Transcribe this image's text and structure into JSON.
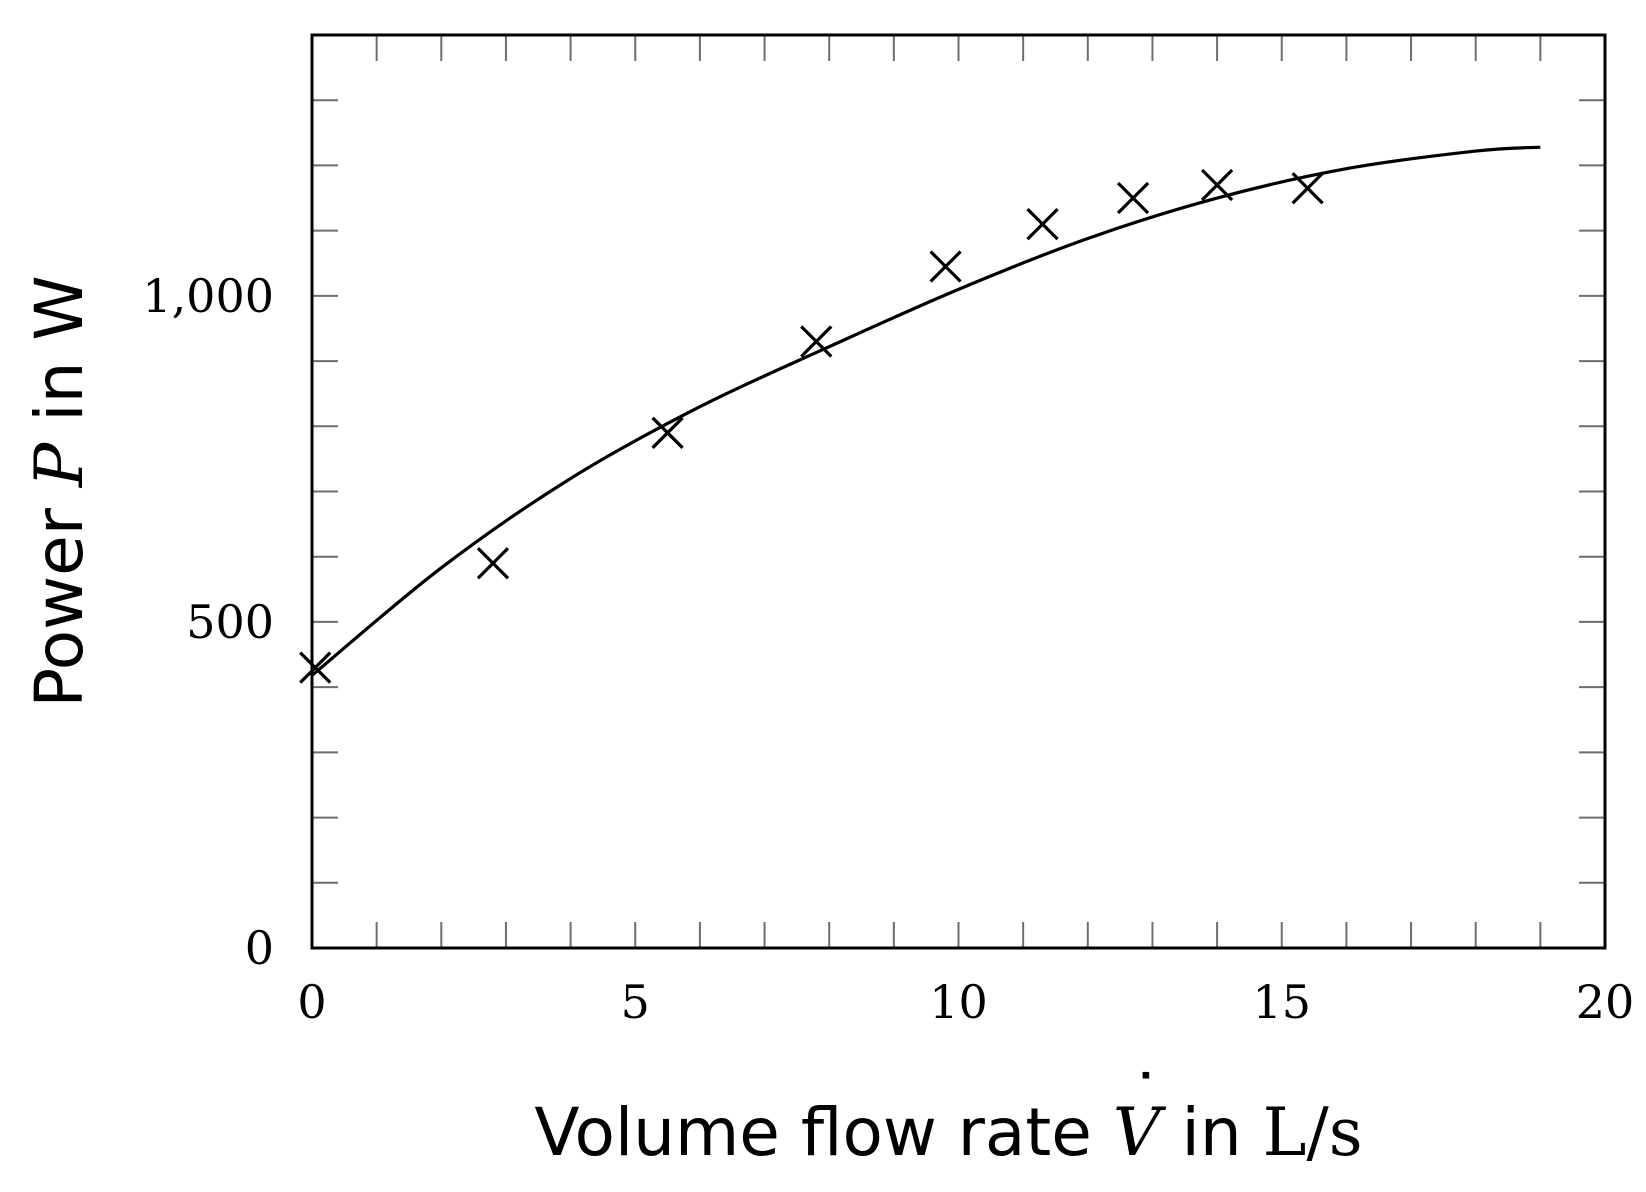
{
  "chart_data": {
    "type": "scatter",
    "xlabel": {
      "prefix": "Volume flow rate ",
      "symbol": "V",
      "middle": " in ",
      "unit": "L/s"
    },
    "ylabel": {
      "prefix": "Power ",
      "symbol": "P",
      "middle": " in ",
      "unit": "W"
    },
    "xlim": [
      0,
      20
    ],
    "ylim": [
      0,
      1400
    ],
    "x_ticks": [
      0,
      5,
      10,
      15,
      20
    ],
    "x_tick_labels": [
      "0",
      "5",
      "10",
      "15",
      "20"
    ],
    "x_minor_step": 1,
    "y_ticks": [
      0,
      500,
      1000
    ],
    "y_tick_labels": [
      "0",
      "500",
      "1,000"
    ],
    "y_minor_step": 100,
    "grid": false,
    "series": [
      {
        "kind": "points",
        "marker": "x",
        "x": [
          0.05,
          2.8,
          5.5,
          7.8,
          9.8,
          11.3,
          12.7,
          14.0,
          15.4
        ],
        "y": [
          430,
          590,
          790,
          930,
          1045,
          1110,
          1150,
          1170,
          1165
        ]
      },
      {
        "kind": "fit-curve",
        "x": [
          0,
          2,
          4,
          6,
          8,
          10,
          12,
          14,
          16,
          18,
          19
        ],
        "y": [
          418,
          583,
          720,
          830,
          922,
          1010,
          1088,
          1150,
          1195,
          1222,
          1228
        ]
      }
    ]
  }
}
